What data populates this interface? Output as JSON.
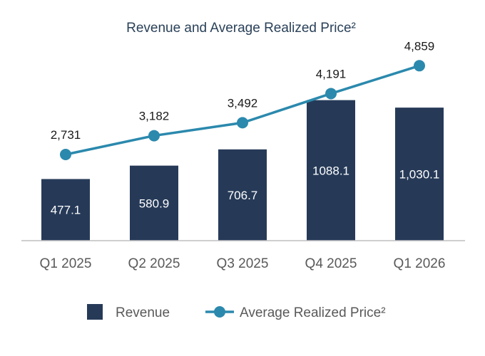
{
  "chart_data": {
    "type": "bar+line",
    "title": "Revenue and Average Realized Price²",
    "categories": [
      "Q1 2025",
      "Q2 2025",
      "Q3 2025",
      "Q4 2025",
      "Q1 2026"
    ],
    "series": [
      {
        "name": "Revenue",
        "type": "bar",
        "values": [
          477.1,
          580.9,
          706.7,
          1088.1,
          1030.1
        ],
        "labels": [
          "477.1",
          "580.9",
          "706.7",
          "1088.1",
          "1,030.1"
        ],
        "color": "#263a58"
      },
      {
        "name": "Average Realized Price²",
        "type": "line",
        "values": [
          2731,
          3182,
          3492,
          4191,
          4859
        ],
        "labels": [
          "2,731",
          "3,182",
          "3,492",
          "4,191",
          "4,859"
        ],
        "color": "#2b89ad"
      }
    ],
    "axes": {
      "y_visible": false,
      "grid": false
    },
    "legend": {
      "position": "bottom"
    }
  }
}
